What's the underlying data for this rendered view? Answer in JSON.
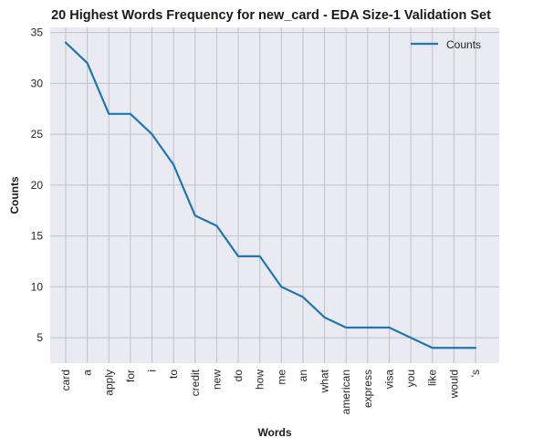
{
  "chart_data": {
    "type": "line",
    "title": "20 Highest Words Frequency for new_card - EDA Size-1 Validation Set",
    "xlabel": "Words",
    "ylabel": "Counts",
    "categories": [
      "card",
      "a",
      "apply",
      "for",
      "i",
      "to",
      "credit",
      "new",
      "do",
      "how",
      "me",
      "an",
      "what",
      "american",
      "express",
      "visa",
      "you",
      "like",
      "would",
      "'s"
    ],
    "series": [
      {
        "name": "Counts",
        "values": [
          34,
          32,
          27,
          27,
          25,
          22,
          17,
          16,
          13,
          13,
          10,
          9,
          7,
          6,
          6,
          6,
          5,
          4,
          4,
          4
        ]
      }
    ],
    "yticks": [
      5,
      10,
      15,
      20,
      25,
      30,
      35
    ],
    "ylim": [
      2.5,
      35.5
    ],
    "grid": true,
    "legend_position": "top-right",
    "colors": {
      "line": "#1f77b4",
      "plot_bg": "#eaeaf2",
      "grid": "#c0c0c8"
    }
  }
}
